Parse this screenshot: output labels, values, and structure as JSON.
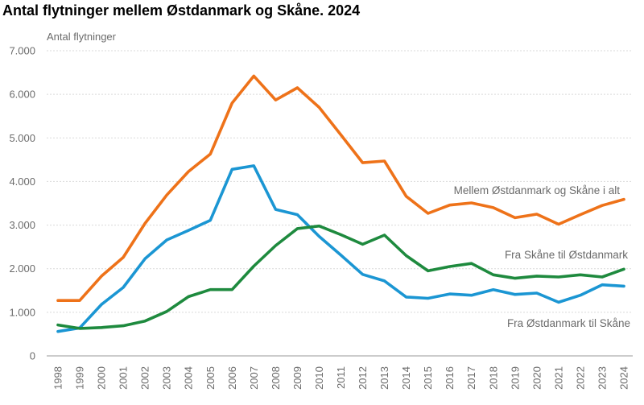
{
  "chart_data": {
    "type": "line",
    "title": "Antal flytninger mellem Østdanmark og Skåne. 2024",
    "ylabel": "Antal flytninger",
    "xlabel": "",
    "ylim": [
      0,
      7000
    ],
    "yticks": [
      0,
      1000,
      2000,
      3000,
      4000,
      5000,
      6000,
      7000
    ],
    "ytick_labels": [
      "0",
      "1.000",
      "2.000",
      "3.000",
      "4.000",
      "5.000",
      "6.000",
      "7.000"
    ],
    "grid": "horizontal",
    "legend": "inline",
    "x": [
      "1998",
      "1999",
      "2000",
      "2001",
      "2002",
      "2003",
      "2004",
      "2005",
      "2006",
      "2007",
      "2008",
      "2009",
      "2010",
      "2011",
      "2012",
      "2013",
      "2014",
      "2015",
      "2016",
      "2017",
      "2018",
      "2019",
      "2020",
      "2021",
      "2022",
      "2023",
      "2024"
    ],
    "series": [
      {
        "name": "Mellem Østdanmark og Skåne i alt",
        "color": "#ee7219",
        "values": [
          1270,
          1270,
          1830,
          2260,
          3040,
          3690,
          4230,
          4630,
          5800,
          6420,
          5870,
          6150,
          5700,
          5070,
          4430,
          4470,
          3660,
          3270,
          3460,
          3510,
          3400,
          3170,
          3250,
          3020,
          3240,
          3450,
          3590
        ]
      },
      {
        "name": "Fra Skåne til Østdanmark",
        "color": "#1e8a3e",
        "values": [
          710,
          630,
          650,
          690,
          800,
          1020,
          1360,
          1520,
          1520,
          2060,
          2530,
          2920,
          2980,
          2780,
          2560,
          2770,
          2300,
          1950,
          2050,
          2120,
          1860,
          1780,
          1830,
          1810,
          1860,
          1810,
          1990
        ]
      },
      {
        "name": "Fra Østdanmark til Skåne",
        "color": "#1b96d3",
        "values": [
          560,
          640,
          1180,
          1570,
          2230,
          2660,
          2880,
          3110,
          4280,
          4360,
          3360,
          3240,
          2740,
          2310,
          1870,
          1720,
          1350,
          1320,
          1420,
          1390,
          1520,
          1410,
          1440,
          1230,
          1390,
          1630,
          1600
        ]
      }
    ]
  }
}
